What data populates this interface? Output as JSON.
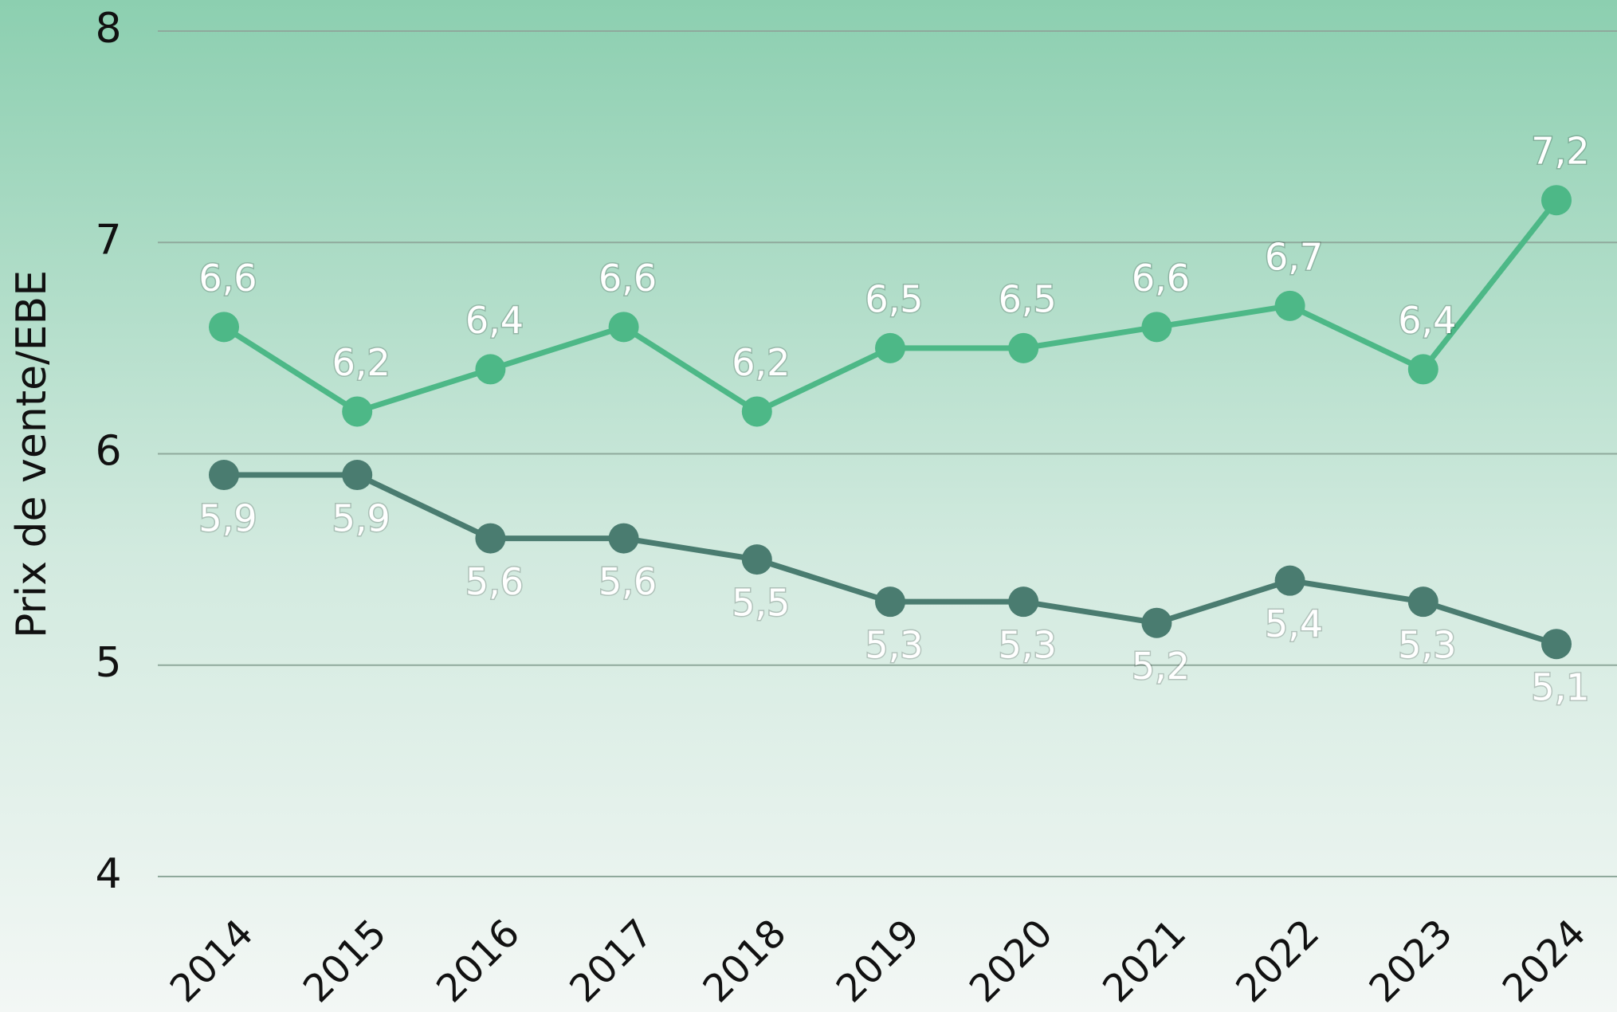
{
  "chart_data": {
    "type": "line",
    "y_label": "Prix de vente/EBE",
    "categories": [
      "2014",
      "2015",
      "2016",
      "2017",
      "2018",
      "2019",
      "2020",
      "2021",
      "2022",
      "2023",
      "2024"
    ],
    "series": [
      {
        "color": "#4db887",
        "values": [
          6.6,
          6.2,
          6.4,
          6.6,
          6.2,
          6.5,
          6.5,
          6.6,
          6.7,
          6.4,
          7.2
        ],
        "value_labels": [
          "6,6",
          "6,2",
          "6,4",
          "6,6",
          "6,2",
          "6,5",
          "6,5",
          "6,6",
          "6,7",
          "6,4",
          "7,2"
        ]
      },
      {
        "color": "#4a7c70",
        "values": [
          5.9,
          5.9,
          5.6,
          5.6,
          5.5,
          5.3,
          5.3,
          5.2,
          5.4,
          5.3,
          5.1
        ],
        "value_labels": [
          "5,9",
          "5,9",
          "5,6",
          "5,6",
          "5,5",
          "5,3",
          "5,3",
          "5,2",
          "5,4",
          "5,3",
          "5,1"
        ]
      }
    ],
    "ylim": [
      4,
      8
    ],
    "yticks": [
      4,
      5,
      6,
      7,
      8
    ],
    "grid": true
  }
}
